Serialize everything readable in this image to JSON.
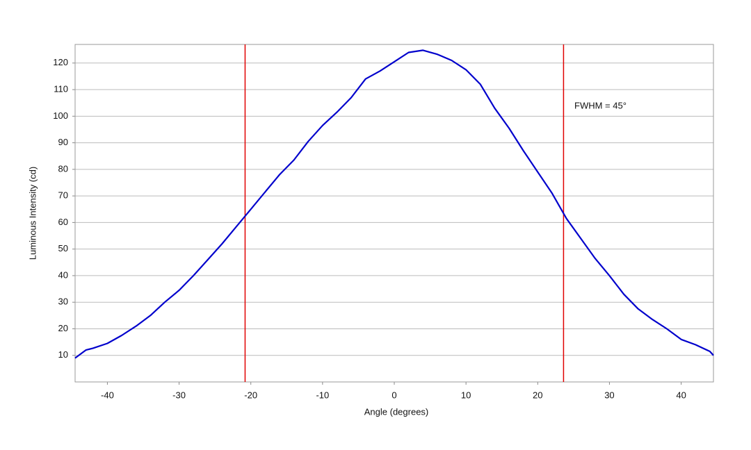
{
  "chart_data": {
    "type": "line",
    "xlabel": "Angle (degrees)",
    "ylabel": "Luminous Intensity (cd)",
    "annotation": "FWHM = 45°",
    "markers": {
      "x": [
        -20.8,
        23.6
      ],
      "color": "#e00000"
    },
    "x": [
      -44.5,
      -43,
      -42,
      -40,
      -38,
      -36,
      -34,
      -32,
      -30,
      -28,
      -26,
      -24,
      -22,
      -20,
      -18,
      -16,
      -14,
      -12,
      -10,
      -8,
      -6,
      -4,
      -2,
      0,
      2,
      4,
      6,
      8,
      10,
      12,
      14,
      16,
      18,
      20,
      22,
      24,
      26,
      28,
      30,
      32,
      34,
      36,
      38,
      40,
      42,
      44,
      44.5
    ],
    "series": [
      {
        "color": "#0000cc",
        "values": [
          9,
          12,
          12.7,
          14.5,
          17.5,
          21,
          25,
          30,
          34.5,
          40,
          46,
          52,
          58.5,
          65,
          71.5,
          78,
          83.5,
          90.5,
          96.5,
          101.5,
          107,
          114,
          117,
          120.5,
          124,
          124.8,
          123.3,
          121,
          117.5,
          112,
          103,
          95.5,
          87,
          79,
          71,
          61.5,
          54,
          46.5,
          40,
          33,
          27.5,
          23.5,
          20,
          16,
          14,
          11.5,
          10
        ]
      }
    ],
    "xlim": [
      -44.5,
      44.5
    ],
    "xticks": [
      -40,
      -30,
      -20,
      -10,
      0,
      10,
      20,
      30,
      40
    ],
    "ylim": [
      0,
      127
    ],
    "yticks": [
      10,
      20,
      30,
      40,
      50,
      60,
      70,
      80,
      90,
      100,
      110,
      120
    ],
    "grid": true
  }
}
